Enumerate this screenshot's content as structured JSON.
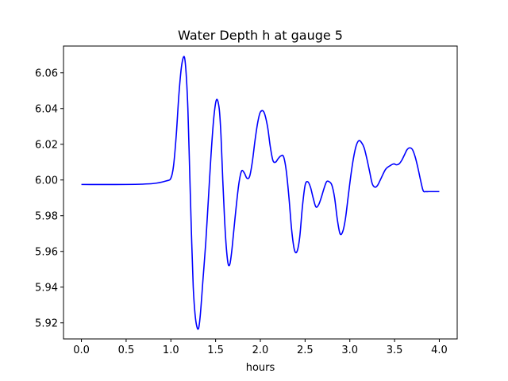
{
  "chart_data": {
    "type": "line",
    "title": "Water Depth h at gauge 5",
    "xlabel": "hours",
    "ylabel": "",
    "xlim": [
      -0.2,
      4.2
    ],
    "ylim": [
      5.911,
      6.075
    ],
    "xticks": [
      0.0,
      0.5,
      1.0,
      1.5,
      2.0,
      2.5,
      3.0,
      3.5,
      4.0
    ],
    "xtick_labels": [
      "0.0",
      "0.5",
      "1.0",
      "1.5",
      "2.0",
      "2.5",
      "3.0",
      "3.5",
      "4.0"
    ],
    "yticks": [
      5.92,
      5.94,
      5.96,
      5.98,
      6.0,
      6.02,
      6.04,
      6.06
    ],
    "ytick_labels": [
      "5.92",
      "5.94",
      "5.96",
      "5.98",
      "6.00",
      "6.02",
      "6.04",
      "6.06"
    ],
    "grid": false,
    "line_color": "#0000ff",
    "series": [
      {
        "x": [
          0.0,
          0.5,
          0.8,
          0.95,
          1.0,
          1.03,
          1.06,
          1.09,
          1.12,
          1.15,
          1.17,
          1.19,
          1.21,
          1.23,
          1.25,
          1.27,
          1.29,
          1.31,
          1.33,
          1.36,
          1.39,
          1.42,
          1.45,
          1.48,
          1.51,
          1.54,
          1.56,
          1.58,
          1.6,
          1.62,
          1.64,
          1.66,
          1.68,
          1.7,
          1.73,
          1.76,
          1.79,
          1.82,
          1.85,
          1.88,
          1.91,
          1.94,
          1.97,
          2.0,
          2.04,
          2.08,
          2.11,
          2.14,
          2.17,
          2.2,
          2.23,
          2.26,
          2.29,
          2.32,
          2.35,
          2.38,
          2.41,
          2.44,
          2.47,
          2.5,
          2.53,
          2.56,
          2.59,
          2.62,
          2.65,
          2.68,
          2.71,
          2.74,
          2.77,
          2.8,
          2.83,
          2.86,
          2.89,
          2.92,
          2.95,
          2.98,
          3.01,
          3.04,
          3.07,
          3.1,
          3.13,
          3.16,
          3.19,
          3.22,
          3.25,
          3.28,
          3.31,
          3.35,
          3.4,
          3.45,
          3.49,
          3.52,
          3.55,
          3.58,
          3.61,
          3.64,
          3.67,
          3.7,
          3.73,
          3.76,
          3.79,
          3.82,
          3.85,
          3.88,
          3.91,
          3.94,
          3.97,
          4.0
        ],
        "y": [
          5.9975,
          5.9975,
          5.998,
          5.9995,
          6.001,
          6.008,
          6.025,
          6.048,
          6.064,
          6.069,
          6.06,
          6.04,
          6.005,
          5.97,
          5.94,
          5.925,
          5.918,
          5.917,
          5.925,
          5.945,
          5.965,
          5.99,
          6.015,
          6.035,
          6.045,
          6.04,
          6.025,
          6.0,
          5.978,
          5.962,
          5.953,
          5.953,
          5.96,
          5.97,
          5.985,
          5.998,
          6.005,
          6.004,
          6.001,
          6.002,
          6.01,
          6.022,
          6.032,
          6.038,
          6.038,
          6.03,
          6.019,
          6.011,
          6.01,
          6.012,
          6.0135,
          6.013,
          6.005,
          5.99,
          5.972,
          5.961,
          5.96,
          5.968,
          5.985,
          5.997,
          5.999,
          5.996,
          5.99,
          5.985,
          5.986,
          5.99,
          5.995,
          5.999,
          5.999,
          5.997,
          5.99,
          5.978,
          5.97,
          5.971,
          5.978,
          5.99,
          6.002,
          6.012,
          6.019,
          6.022,
          6.021,
          6.018,
          6.012,
          6.005,
          5.998,
          5.996,
          5.997,
          6.001,
          6.006,
          6.008,
          6.009,
          6.0085,
          6.009,
          6.011,
          6.014,
          6.017,
          6.018,
          6.017,
          6.013,
          6.007,
          6.0,
          5.994,
          5.9935,
          5.9935,
          5.9935,
          5.9935,
          5.9935,
          5.9935
        ]
      }
    ]
  }
}
